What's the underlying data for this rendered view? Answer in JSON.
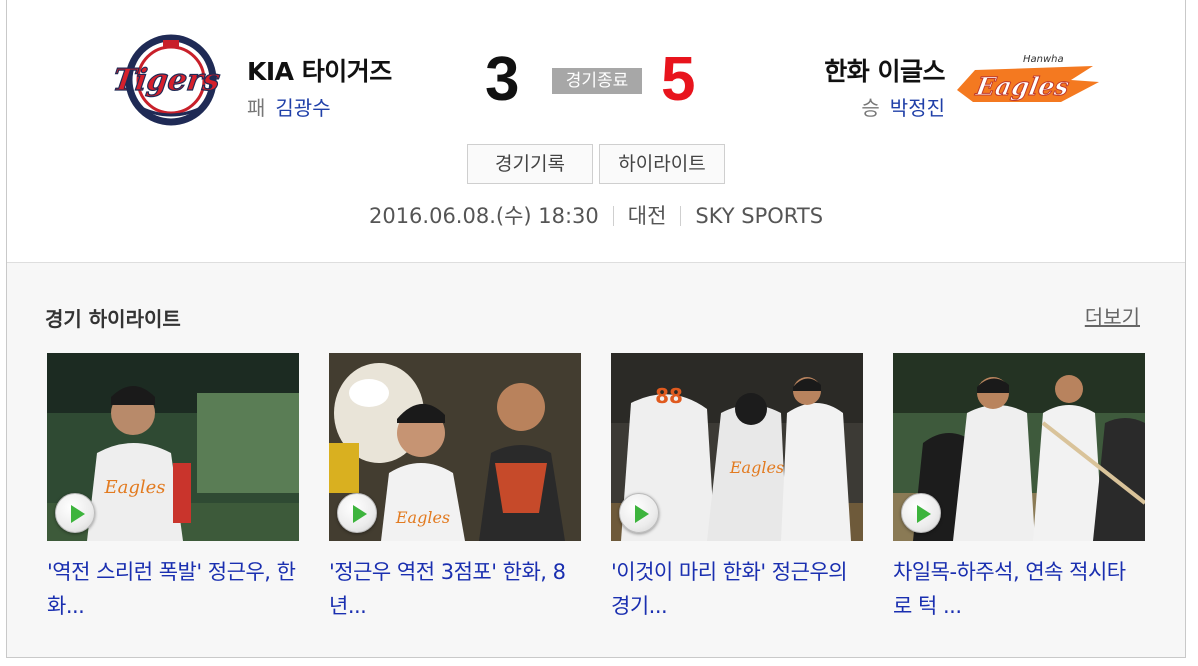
{
  "scoreboard": {
    "home": {
      "logo_text": "Tigers",
      "team_name": "KIA 타이거즈",
      "pitcher_result": "패",
      "pitcher_name": "김광수",
      "score": "3"
    },
    "status": "경기종료",
    "away": {
      "logo_text": "Eagles",
      "logo_subtext": "Hanwha",
      "team_name": "한화 이글스",
      "pitcher_result": "승",
      "pitcher_name": "박정진",
      "score": "5"
    },
    "buttons": {
      "record": "경기기록",
      "highlight": "하이라이트"
    },
    "info": {
      "datetime": "2016.06.08.(수) 18:30",
      "stadium": "대전",
      "broadcaster": "SKY SPORTS"
    }
  },
  "highlights": {
    "title": "경기 하이라이트",
    "more": "더보기",
    "videos": [
      {
        "title": "'역전 스리런 폭발' 정근우, 한화..."
      },
      {
        "title": "'정근우 역전 3점포' 한화, 8년..."
      },
      {
        "title": "'이것이 마리 한화' 정근우의 경기..."
      },
      {
        "title": "차일목-하주석, 연속 적시타로 턱 ..."
      }
    ]
  },
  "colors": {
    "away_score": "#e8141d",
    "pitcher_name": "#1f3fa8",
    "video_title": "#1a2fb0",
    "status_badge_bg": "#a7a7a7"
  },
  "icons": [
    "play-icon"
  ]
}
